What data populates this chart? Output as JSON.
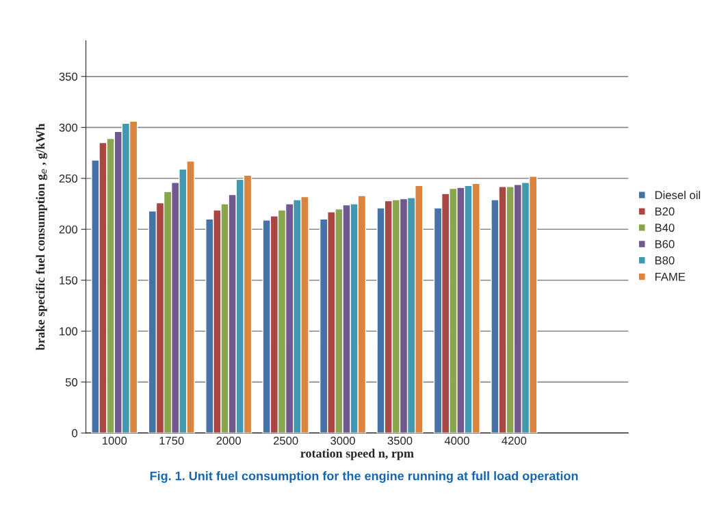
{
  "chart_data": {
    "type": "bar",
    "xlabel": "rotation speed n, rpm",
    "ylabel": "brake specific fuel consumption g$_{e}$ , g/kWh",
    "annotations": [
      "Fig. 1. Unit fuel consumption for the engine running at full load operation"
    ],
    "categories": [
      "1000",
      "1750",
      "2000",
      "2500",
      "3000",
      "3500",
      "4000",
      "4200"
    ],
    "series": [
      {
        "name": "Diesel oil",
        "color": "#4573a7",
        "values": [
          268,
          218,
          210,
          209,
          210,
          221,
          221,
          229
        ]
      },
      {
        "name": "B20",
        "color": "#aa4644",
        "values": [
          285,
          226,
          219,
          213,
          217,
          228,
          235,
          242
        ]
      },
      {
        "name": "B40",
        "color": "#89a54e",
        "values": [
          289,
          237,
          225,
          219,
          220,
          229,
          240,
          242
        ]
      },
      {
        "name": "B60",
        "color": "#71588f",
        "values": [
          296,
          246,
          234,
          225,
          224,
          230,
          241,
          244
        ]
      },
      {
        "name": "B80",
        "color": "#4198af",
        "values": [
          304,
          259,
          249,
          229,
          225,
          231,
          243,
          246
        ]
      },
      {
        "name": "FAME",
        "color": "#db843d",
        "values": [
          306,
          267,
          253,
          232,
          233,
          243,
          245,
          252
        ]
      }
    ],
    "ylim": [
      0,
      385
    ],
    "yticks": [
      0,
      50,
      100,
      150,
      200,
      250,
      300,
      350
    ],
    "grid": "y",
    "legend": "right"
  }
}
